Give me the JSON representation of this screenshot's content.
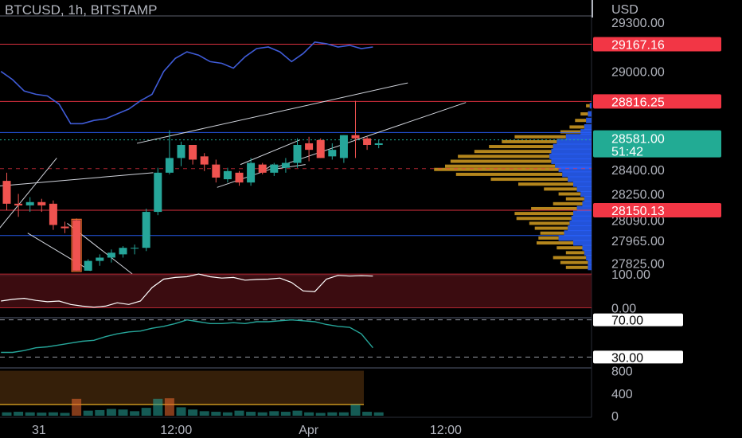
{
  "header": {
    "title": "BTCUSD, 1h, BITSTAMP",
    "currency": "USD"
  },
  "colors": {
    "up": "#26a69a",
    "down": "#ef5350",
    "resistance": "#f23645",
    "support": "#2962ff",
    "current": "#22ab94",
    "profile_yellow": "#c8951f",
    "profile_blue": "#2962ff",
    "rsi": "#26a69a",
    "osc": "#ffffff",
    "overlay": "#3f5bd6"
  },
  "chart_data": [
    {
      "type": "candlestick",
      "title": "BTCUSD, 1h, BITSTAMP",
      "ylabel": "USD",
      "ylim": [
        27760,
        29340
      ],
      "yticks": [
        27825,
        27965,
        28090,
        28250,
        28400,
        29000,
        29300
      ],
      "ytick_labels": [
        "27825.00",
        "27965.00",
        "28090.00",
        "28250.00",
        "28400.00",
        "29000.00",
        "29300.00"
      ],
      "x_labels": [
        {
          "label": "31",
          "bar": 1.4
        },
        {
          "label": "12:00",
          "bar": 13.2
        },
        {
          "label": "Apr",
          "bar": 24.6
        },
        {
          "label": "12:00",
          "bar": 36.4
        }
      ],
      "candles": [
        {
          "o": 28330,
          "h": 28380,
          "l": 28150,
          "c": 28190
        },
        {
          "o": 28190,
          "h": 28250,
          "l": 28110,
          "c": 28180
        },
        {
          "o": 28180,
          "h": 28230,
          "l": 28140,
          "c": 28200
        },
        {
          "o": 28200,
          "h": 28220,
          "l": 28140,
          "c": 28180
        },
        {
          "o": 28190,
          "h": 28210,
          "l": 28030,
          "c": 28060
        },
        {
          "o": 28050,
          "h": 28080,
          "l": 28010,
          "c": 28040
        },
        {
          "o": 28090,
          "h": 28100,
          "l": 27780,
          "c": 27780
        },
        {
          "o": 27780,
          "h": 27850,
          "l": 27780,
          "c": 27840
        },
        {
          "o": 27840,
          "h": 27880,
          "l": 27810,
          "c": 27860
        },
        {
          "o": 27860,
          "h": 27910,
          "l": 27830,
          "c": 27890
        },
        {
          "o": 27880,
          "h": 27930,
          "l": 27860,
          "c": 27920
        },
        {
          "o": 27920,
          "h": 27940,
          "l": 27880,
          "c": 27920
        },
        {
          "o": 27920,
          "h": 28160,
          "l": 27900,
          "c": 28140
        },
        {
          "o": 28140,
          "h": 28410,
          "l": 28120,
          "c": 28380
        },
        {
          "o": 28380,
          "h": 28640,
          "l": 28370,
          "c": 28470
        },
        {
          "o": 28470,
          "h": 28570,
          "l": 28420,
          "c": 28550
        },
        {
          "o": 28550,
          "h": 28550,
          "l": 28430,
          "c": 28460
        },
        {
          "o": 28480,
          "h": 28500,
          "l": 28390,
          "c": 28430
        },
        {
          "o": 28430,
          "h": 28460,
          "l": 28320,
          "c": 28350
        },
        {
          "o": 28340,
          "h": 28410,
          "l": 28320,
          "c": 28390
        },
        {
          "o": 28380,
          "h": 28390,
          "l": 28300,
          "c": 28320
        },
        {
          "o": 28320,
          "h": 28470,
          "l": 28300,
          "c": 28440
        },
        {
          "o": 28430,
          "h": 28440,
          "l": 28370,
          "c": 28380
        },
        {
          "o": 28380,
          "h": 28440,
          "l": 28360,
          "c": 28430
        },
        {
          "o": 28410,
          "h": 28470,
          "l": 28380,
          "c": 28440
        },
        {
          "o": 28440,
          "h": 28590,
          "l": 28410,
          "c": 28550
        },
        {
          "o": 28560,
          "h": 28600,
          "l": 28450,
          "c": 28520
        },
        {
          "o": 28580,
          "h": 28590,
          "l": 28470,
          "c": 28470
        },
        {
          "o": 28480,
          "h": 28560,
          "l": 28460,
          "c": 28520
        },
        {
          "o": 28470,
          "h": 28610,
          "l": 28440,
          "c": 28610
        },
        {
          "o": 28610,
          "h": 28820,
          "l": 28470,
          "c": 28590
        },
        {
          "o": 28590,
          "h": 28600,
          "l": 28520,
          "c": 28550
        },
        {
          "o": 28550,
          "h": 28580,
          "l": 28530,
          "c": 28560
        }
      ],
      "levels": [
        {
          "name": "resistance-29167",
          "value": 29167.16,
          "label": "29167.16",
          "color": "#f23645"
        },
        {
          "name": "resistance-28816",
          "value": 28816.25,
          "label": "28816.25",
          "color": "#f23645"
        },
        {
          "name": "support-28626",
          "value": 28626,
          "label": "",
          "color": "#2962ff"
        },
        {
          "name": "support-28150",
          "value": 28150.13,
          "label": "28150.13",
          "color": "#f23645"
        },
        {
          "name": "support-27995",
          "value": 27995,
          "label": "",
          "color": "#2962ff"
        }
      ],
      "current_price": {
        "value": 28581.0,
        "label": "28581.00",
        "countdown": "51:42"
      },
      "volume_profile_yellow": [
        [
          28790,
          0.02
        ],
        [
          28740,
          0.04
        ],
        [
          28700,
          0.06
        ],
        [
          28660,
          0.08
        ],
        [
          28630,
          0.11
        ],
        [
          28600,
          0.28
        ],
        [
          28570,
          0.3
        ],
        [
          28540,
          0.35
        ],
        [
          28510,
          0.42
        ],
        [
          28480,
          0.5
        ],
        [
          28450,
          0.55
        ],
        [
          28420,
          0.6
        ],
        [
          28400,
          0.68
        ],
        [
          28370,
          0.58
        ],
        [
          28340,
          0.42
        ],
        [
          28310,
          0.3
        ],
        [
          28280,
          0.18
        ],
        [
          28250,
          0.12
        ],
        [
          28220,
          0.1
        ],
        [
          28190,
          0.16
        ],
        [
          28160,
          0.25
        ],
        [
          28130,
          0.32
        ],
        [
          28100,
          0.3
        ],
        [
          28070,
          0.22
        ],
        [
          28040,
          0.18
        ],
        [
          28010,
          0.13
        ],
        [
          27980,
          0.11
        ],
        [
          27950,
          0.2
        ],
        [
          27920,
          0.14
        ],
        [
          27890,
          0.1
        ],
        [
          27860,
          0.18
        ],
        [
          27830,
          0.15
        ],
        [
          27800,
          0.12
        ]
      ],
      "volume_profile_blue": [
        [
          28790,
          0.01
        ],
        [
          28740,
          0.02
        ],
        [
          28700,
          0.03
        ],
        [
          28660,
          0.04
        ],
        [
          28630,
          0.06
        ],
        [
          28600,
          0.14
        ],
        [
          28570,
          0.19
        ],
        [
          28540,
          0.21
        ],
        [
          28510,
          0.22
        ],
        [
          28480,
          0.23
        ],
        [
          28450,
          0.22
        ],
        [
          28420,
          0.2
        ],
        [
          28400,
          0.18
        ],
        [
          28370,
          0.16
        ],
        [
          28340,
          0.13
        ],
        [
          28310,
          0.1
        ],
        [
          28280,
          0.08
        ],
        [
          28250,
          0.06
        ],
        [
          28220,
          0.04
        ],
        [
          28190,
          0.05
        ],
        [
          28160,
          0.08
        ],
        [
          28130,
          0.1
        ],
        [
          28100,
          0.11
        ],
        [
          28070,
          0.12
        ],
        [
          28040,
          0.13
        ],
        [
          28010,
          0.15
        ],
        [
          27980,
          0.18
        ],
        [
          27950,
          0.1
        ],
        [
          27920,
          0.05
        ],
        [
          27890,
          0.04
        ],
        [
          27860,
          0.03
        ],
        [
          27830,
          0.02
        ],
        [
          27800,
          0.02
        ]
      ],
      "overlay_line": [
        29000,
        28950,
        28880,
        28860,
        28850,
        28800,
        28680,
        28680,
        28700,
        28710,
        28740,
        28770,
        28820,
        28860,
        29000,
        29080,
        29120,
        29100,
        29060,
        29050,
        29020,
        29090,
        29140,
        29150,
        29120,
        29060,
        29110,
        29180,
        29170,
        29150,
        29160,
        29140,
        29150
      ],
      "trend_lines": [
        {
          "b1": -1.2,
          "p1": 27990,
          "b2": 4.3,
          "p2": 28470
        },
        {
          "b1": 1.8,
          "p1": 28010,
          "b2": 7.2,
          "p2": 27780
        },
        {
          "b1": 5.2,
          "p1": 28070,
          "b2": 10.8,
          "p2": 27760
        },
        {
          "b1": -2.0,
          "p1": 28290,
          "b2": 12.6,
          "p2": 28380
        },
        {
          "b1": 11.2,
          "p1": 28560,
          "b2": 34.5,
          "p2": 28930
        },
        {
          "b1": 18.1,
          "p1": 28290,
          "b2": 39.5,
          "p2": 28810
        },
        {
          "b1": 20.1,
          "p1": 28430,
          "b2": 25.2,
          "p2": 28580
        },
        {
          "b1": 21.8,
          "p1": 28380,
          "b2": 22.9,
          "p2": 28430
        },
        {
          "b1": 22.8,
          "p1": 28400,
          "b2": 25.7,
          "p2": 28430
        }
      ]
    },
    {
      "type": "line",
      "name": "oscillator",
      "ylim": [
        -20,
        105
      ],
      "yticks": [
        0,
        100
      ],
      "ytick_labels": [
        "0.00",
        "100.00"
      ],
      "values": [
        20,
        25,
        28,
        22,
        18,
        20,
        10,
        5,
        2,
        5,
        15,
        10,
        20,
        60,
        85,
        90,
        92,
        100,
        92,
        88,
        90,
        82,
        84,
        85,
        88,
        75,
        50,
        48,
        85,
        96,
        94,
        95,
        94
      ]
    },
    {
      "type": "line",
      "name": "rsi",
      "ylim": [
        20,
        80
      ],
      "yticks": [
        30,
        70
      ],
      "ytick_labels": [
        "30.00",
        "70.00"
      ],
      "values": [
        35,
        35,
        37,
        40,
        41,
        43,
        45,
        47,
        48,
        52,
        55,
        57,
        58,
        61,
        63,
        66,
        70,
        68,
        66,
        66,
        67,
        66,
        68,
        68,
        69,
        70,
        69,
        68,
        65,
        63,
        62,
        55,
        40
      ]
    },
    {
      "type": "bar",
      "name": "volume",
      "ylim": [
        0,
        850
      ],
      "yticks": [
        0,
        400,
        800
      ],
      "ytick_labels": [
        "0",
        "400",
        "800"
      ],
      "values": [
        60,
        70,
        60,
        55,
        60,
        50,
        300,
        90,
        100,
        120,
        110,
        80,
        140,
        300,
        310,
        150,
        110,
        80,
        70,
        60,
        90,
        70,
        60,
        80,
        70,
        90,
        60,
        50,
        60,
        60,
        200,
        70,
        60
      ],
      "colors": [
        "#26a69a",
        "#26a69a",
        "#26a69a",
        "#26a69a",
        "#26a69a",
        "#26a69a",
        "#ef6c2f",
        "#26a69a",
        "#26a69a",
        "#26a69a",
        "#26a69a",
        "#26a69a",
        "#26a69a",
        "#26a69a",
        "#ef6c2f",
        "#26a69a",
        "#26a69a",
        "#26a69a",
        "#26a69a",
        "#26a69a",
        "#26a69a",
        "#26a69a",
        "#26a69a",
        "#26a69a",
        "#26a69a",
        "#26a69a",
        "#26a69a",
        "#26a69a",
        "#26a69a",
        "#26a69a",
        "#26a69a",
        "#26a69a",
        "#26a69a"
      ]
    }
  ]
}
